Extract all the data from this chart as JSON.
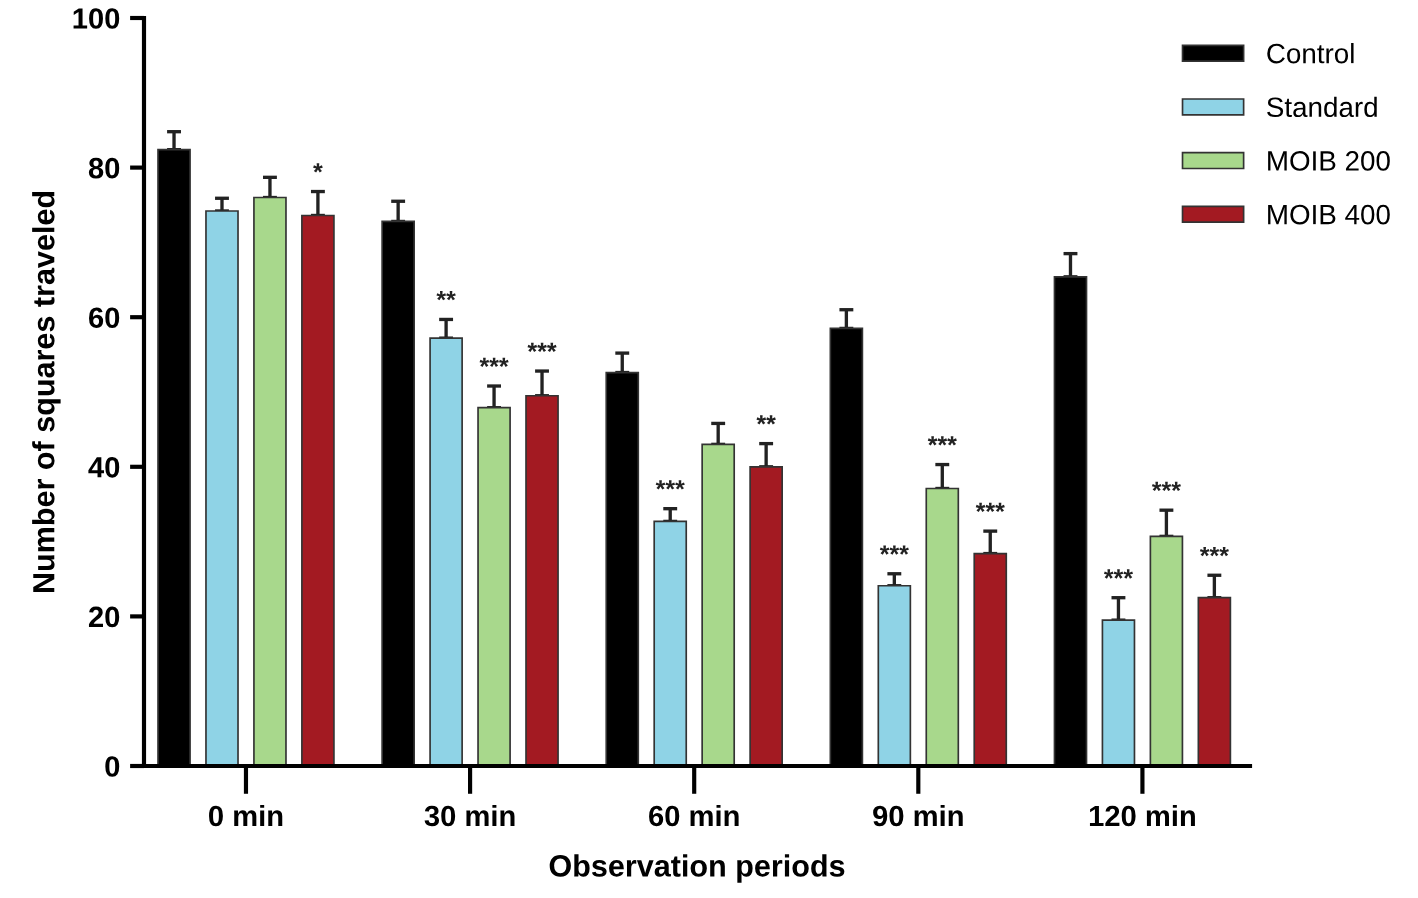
{
  "chart_data": {
    "type": "bar",
    "xlabel": "Observation periods",
    "ylabel": "Number of squares traveled",
    "categories": [
      "0 min",
      "30 min",
      "60 min",
      "90 min",
      "120 min"
    ],
    "series": [
      {
        "name": "Control",
        "color": "#000000",
        "values": [
          82.4,
          72.8,
          52.6,
          58.5,
          65.4
        ],
        "errors": [
          [
            82.4,
            84.8
          ],
          [
            72.8,
            75.5
          ],
          [
            52.6,
            55.2
          ],
          [
            58.5,
            61.0
          ],
          [
            65.4,
            68.5
          ]
        ],
        "value_labels": [
          null,
          null,
          null,
          null,
          null
        ]
      },
      {
        "name": "Standard",
        "color": "#8fd3e6",
        "values": [
          74.2,
          57.2,
          32.7,
          24.1,
          19.5
        ],
        "errors": [
          [
            74.2,
            75.9
          ],
          [
            57.2,
            59.7
          ],
          [
            32.7,
            34.4
          ],
          [
            24.1,
            25.7
          ],
          [
            19.5,
            22.5
          ]
        ],
        "value_labels": [
          null,
          "**",
          "***",
          "***",
          "***"
        ]
      },
      {
        "name": "MOIB 200",
        "color": "#a8d88c",
        "values": [
          76.0,
          47.9,
          43.0,
          37.1,
          30.7
        ],
        "errors": [
          [
            76.0,
            78.7
          ],
          [
            47.9,
            50.8
          ],
          [
            43.0,
            45.8
          ],
          [
            37.1,
            40.3
          ],
          [
            30.7,
            34.2
          ]
        ],
        "value_labels": [
          null,
          "***",
          null,
          "***",
          "***"
        ]
      },
      {
        "name": "MOIB 400",
        "color": "#a31a22",
        "values": [
          73.6,
          49.5,
          40.0,
          28.4,
          22.5
        ],
        "errors": [
          [
            73.6,
            76.8
          ],
          [
            49.5,
            52.8
          ],
          [
            40.0,
            43.1
          ],
          [
            28.4,
            31.4
          ],
          [
            22.5,
            25.5
          ]
        ],
        "value_labels": [
          "*",
          "***",
          "**",
          "***",
          "***"
        ]
      }
    ],
    "ylim": [
      0,
      100
    ],
    "yticks": [
      0,
      20,
      40,
      60,
      80,
      100
    ],
    "grid": false,
    "legend": "top right"
  }
}
